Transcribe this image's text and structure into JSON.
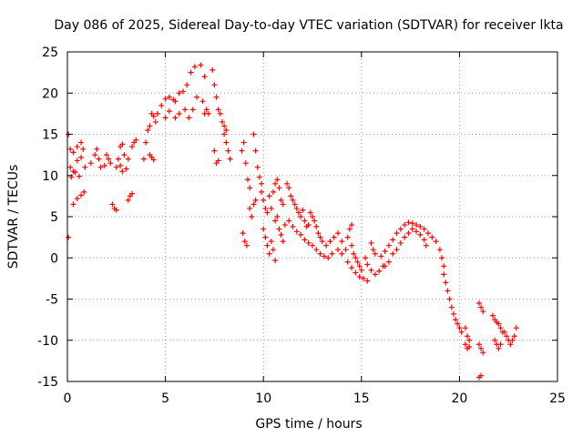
{
  "chart_data": {
    "type": "scatter",
    "title": "Day 086 of 2025, Sidereal Day-to-day VTEC variation (SDTVAR) for receiver lkta",
    "xlabel": "GPS time / hours",
    "ylabel": "SDTVAR / TECUs",
    "xlim": [
      0,
      25
    ],
    "ylim": [
      -15,
      25
    ],
    "xticks": [
      0,
      5,
      10,
      15,
      20,
      25
    ],
    "xtick_labels": [
      "0",
      "5",
      "10",
      "15",
      "20",
      "25"
    ],
    "yticks": [
      -15,
      -10,
      -5,
      0,
      5,
      10,
      15,
      20,
      25
    ],
    "ytick_labels": [
      "-15",
      "-10",
      "-5",
      "0",
      "5",
      "10",
      "15",
      "20",
      "25"
    ],
    "grid": true,
    "marker": "+",
    "series": [
      {
        "name": "SDTVAR",
        "color": "#ff0000",
        "points": [
          [
            0.05,
            15.0
          ],
          [
            0.05,
            2.5
          ],
          [
            0.15,
            13.2
          ],
          [
            0.3,
            12.8
          ],
          [
            0.5,
            13.5
          ],
          [
            0.7,
            14.0
          ],
          [
            0.8,
            13.2
          ],
          [
            0.15,
            11.0
          ],
          [
            0.3,
            10.5
          ],
          [
            0.5,
            11.8
          ],
          [
            0.7,
            12.2
          ],
          [
            0.9,
            11.0
          ],
          [
            0.2,
            9.8
          ],
          [
            0.4,
            10.4
          ],
          [
            0.6,
            9.9
          ],
          [
            0.3,
            6.5
          ],
          [
            0.5,
            7.2
          ],
          [
            0.7,
            7.6
          ],
          [
            0.85,
            8.0
          ],
          [
            1.2,
            11.5
          ],
          [
            1.4,
            12.5
          ],
          [
            1.5,
            13.2
          ],
          [
            1.6,
            12.0
          ],
          [
            1.7,
            11.0
          ],
          [
            1.9,
            11.2
          ],
          [
            2.0,
            12.5
          ],
          [
            2.1,
            12.0
          ],
          [
            2.2,
            11.5
          ],
          [
            2.3,
            6.5
          ],
          [
            2.4,
            6.0
          ],
          [
            2.5,
            5.8
          ],
          [
            2.5,
            11.0
          ],
          [
            2.6,
            12.0
          ],
          [
            2.7,
            13.5
          ],
          [
            2.8,
            13.8
          ],
          [
            2.9,
            12.5
          ],
          [
            2.7,
            11.2
          ],
          [
            2.8,
            10.5
          ],
          [
            3.0,
            10.8
          ],
          [
            3.1,
            12.0
          ],
          [
            3.1,
            7.0
          ],
          [
            3.2,
            7.5
          ],
          [
            3.3,
            7.8
          ],
          [
            3.3,
            13.5
          ],
          [
            3.4,
            14.0
          ],
          [
            3.5,
            14.3
          ],
          [
            3.9,
            12.0
          ],
          [
            4.0,
            14.0
          ],
          [
            4.1,
            15.5
          ],
          [
            4.2,
            16.0
          ],
          [
            4.3,
            17.5
          ],
          [
            4.4,
            17.2
          ],
          [
            4.2,
            12.5
          ],
          [
            4.3,
            12.2
          ],
          [
            4.4,
            11.9
          ],
          [
            4.5,
            16.5
          ],
          [
            4.6,
            17.5
          ],
          [
            4.8,
            18.5
          ],
          [
            5.0,
            19.3
          ],
          [
            5.2,
            19.5
          ],
          [
            5.4,
            19.2
          ],
          [
            5.5,
            19.0
          ],
          [
            5.7,
            20.0
          ],
          [
            5.9,
            20.2
          ],
          [
            6.1,
            21.0
          ],
          [
            6.3,
            22.5
          ],
          [
            6.5,
            23.2
          ],
          [
            6.8,
            23.4
          ],
          [
            7.0,
            22.0
          ],
          [
            5.0,
            17.0
          ],
          [
            5.2,
            17.8
          ],
          [
            5.5,
            17.0
          ],
          [
            5.7,
            17.5
          ],
          [
            6.0,
            18.0
          ],
          [
            6.2,
            17.0
          ],
          [
            6.4,
            18.0
          ],
          [
            6.6,
            19.5
          ],
          [
            6.9,
            19.0
          ],
          [
            7.0,
            17.5
          ],
          [
            7.1,
            18.0
          ],
          [
            7.2,
            17.5
          ],
          [
            7.4,
            22.8
          ],
          [
            7.5,
            21.0
          ],
          [
            7.6,
            19.5
          ],
          [
            7.7,
            18.0
          ],
          [
            7.8,
            17.5
          ],
          [
            7.9,
            16.5
          ],
          [
            8.0,
            16.0
          ],
          [
            8.1,
            15.5
          ],
          [
            7.5,
            13.0
          ],
          [
            7.6,
            11.5
          ],
          [
            7.7,
            11.8
          ],
          [
            8.0,
            15.0
          ],
          [
            8.1,
            14.0
          ],
          [
            8.2,
            13.0
          ],
          [
            8.3,
            12.0
          ],
          [
            9.0,
            14.0
          ],
          [
            8.9,
            13.0
          ],
          [
            9.1,
            11.5
          ],
          [
            9.2,
            9.5
          ],
          [
            9.3,
            8.5
          ],
          [
            8.95,
            3.0
          ],
          [
            9.05,
            2.0
          ],
          [
            9.15,
            1.5
          ],
          [
            9.5,
            15.0
          ],
          [
            9.6,
            13.0
          ],
          [
            9.7,
            11.0
          ],
          [
            9.8,
            9.8
          ],
          [
            9.9,
            9.0
          ],
          [
            9.3,
            6.0
          ],
          [
            9.4,
            5.0
          ],
          [
            9.5,
            6.5
          ],
          [
            9.6,
            7.0
          ],
          [
            9.9,
            8.0
          ],
          [
            10.0,
            7.0
          ],
          [
            10.1,
            6.0
          ],
          [
            10.2,
            5.5
          ],
          [
            10.3,
            7.5
          ],
          [
            10.4,
            6.0
          ],
          [
            10.0,
            3.5
          ],
          [
            10.1,
            2.5
          ],
          [
            10.2,
            1.5
          ],
          [
            10.3,
            0.5
          ],
          [
            10.4,
            2.0
          ],
          [
            10.5,
            1.0
          ],
          [
            10.6,
            -0.3
          ],
          [
            10.5,
            8.0
          ],
          [
            10.6,
            9.0
          ],
          [
            10.7,
            9.5
          ],
          [
            10.8,
            8.5
          ],
          [
            10.9,
            7.0
          ],
          [
            11.0,
            6.5
          ],
          [
            10.6,
            4.5
          ],
          [
            10.7,
            5.0
          ],
          [
            10.8,
            3.5
          ],
          [
            10.9,
            2.8
          ],
          [
            11.0,
            2.0
          ],
          [
            11.1,
            4.0
          ],
          [
            11.2,
            9.0
          ],
          [
            11.3,
            8.5
          ],
          [
            11.4,
            7.5
          ],
          [
            11.5,
            7.0
          ],
          [
            11.6,
            6.5
          ],
          [
            11.7,
            6.0
          ],
          [
            11.8,
            5.5
          ],
          [
            11.9,
            5.0
          ],
          [
            12.0,
            5.8
          ],
          [
            12.1,
            4.5
          ],
          [
            12.2,
            3.8
          ],
          [
            12.3,
            4.0
          ],
          [
            11.3,
            4.5
          ],
          [
            11.5,
            3.8
          ],
          [
            11.7,
            3.2
          ],
          [
            11.9,
            2.8
          ],
          [
            12.1,
            2.2
          ],
          [
            12.3,
            1.8
          ],
          [
            12.4,
            5.5
          ],
          [
            12.5,
            5.0
          ],
          [
            12.6,
            4.5
          ],
          [
            12.7,
            3.8
          ],
          [
            12.8,
            3.0
          ],
          [
            12.9,
            2.5
          ],
          [
            12.5,
            1.5
          ],
          [
            12.7,
            1.0
          ],
          [
            12.9,
            0.5
          ],
          [
            13.1,
            0.2
          ],
          [
            13.3,
            0.0
          ],
          [
            13.5,
            0.5
          ],
          [
            13.0,
            2.0
          ],
          [
            13.2,
            1.5
          ],
          [
            13.4,
            2.0
          ],
          [
            13.6,
            2.5
          ],
          [
            13.8,
            3.0
          ],
          [
            14.0,
            2.0
          ],
          [
            13.8,
            1.0
          ],
          [
            14.0,
            0.5
          ],
          [
            14.2,
            1.0
          ],
          [
            14.3,
            2.5
          ],
          [
            14.4,
            3.5
          ],
          [
            14.5,
            4.0
          ],
          [
            14.5,
            1.5
          ],
          [
            14.6,
            0.5
          ],
          [
            14.7,
            0.0
          ],
          [
            14.8,
            -0.5
          ],
          [
            14.9,
            -1.0
          ],
          [
            15.0,
            -1.5
          ],
          [
            14.3,
            -0.5
          ],
          [
            14.5,
            -1.2
          ],
          [
            14.7,
            -1.8
          ],
          [
            14.9,
            -2.3
          ],
          [
            15.1,
            -2.5
          ],
          [
            15.3,
            -2.8
          ],
          [
            15.2,
            0.0
          ],
          [
            15.3,
            -0.8
          ],
          [
            15.5,
            -1.5
          ],
          [
            15.7,
            -2.0
          ],
          [
            15.9,
            -1.6
          ],
          [
            16.1,
            -1.0
          ],
          [
            15.5,
            1.8
          ],
          [
            15.6,
            1.0
          ],
          [
            15.7,
            0.5
          ],
          [
            16.0,
            0.2
          ],
          [
            16.2,
            0.8
          ],
          [
            16.4,
            1.5
          ],
          [
            16.6,
            2.2
          ],
          [
            16.8,
            3.0
          ],
          [
            17.0,
            3.5
          ],
          [
            16.2,
            -1.0
          ],
          [
            16.4,
            -0.5
          ],
          [
            16.6,
            0.5
          ],
          [
            16.8,
            1.0
          ],
          [
            17.0,
            1.8
          ],
          [
            17.2,
            2.5
          ],
          [
            17.2,
            4.0
          ],
          [
            17.4,
            4.3
          ],
          [
            17.6,
            4.2
          ],
          [
            17.8,
            4.0
          ],
          [
            18.0,
            3.8
          ],
          [
            18.2,
            3.5
          ],
          [
            17.4,
            3.0
          ],
          [
            17.6,
            3.5
          ],
          [
            17.8,
            3.2
          ],
          [
            18.0,
            2.8
          ],
          [
            18.2,
            2.2
          ],
          [
            18.3,
            1.5
          ],
          [
            18.4,
            3.0
          ],
          [
            18.6,
            2.5
          ],
          [
            18.8,
            2.0
          ],
          [
            19.0,
            1.0
          ],
          [
            19.1,
            0.0
          ],
          [
            19.2,
            -1.0
          ],
          [
            19.2,
            -2.0
          ],
          [
            19.3,
            -3.0
          ],
          [
            19.4,
            -4.0
          ],
          [
            19.5,
            -5.0
          ],
          [
            19.6,
            -6.0
          ],
          [
            19.7,
            -6.8
          ],
          [
            19.8,
            -7.5
          ],
          [
            19.9,
            -8.0
          ],
          [
            20.0,
            -8.5
          ],
          [
            20.1,
            -9.0
          ],
          [
            20.3,
            -8.5
          ],
          [
            20.4,
            -9.5
          ],
          [
            20.5,
            -10.0
          ],
          [
            20.3,
            -10.5
          ],
          [
            20.4,
            -11.0
          ],
          [
            20.5,
            -10.8
          ],
          [
            21.0,
            -5.5
          ],
          [
            21.1,
            -6.0
          ],
          [
            21.2,
            -6.5
          ],
          [
            21.0,
            -10.5
          ],
          [
            21.1,
            -11.0
          ],
          [
            21.2,
            -11.5
          ],
          [
            21.0,
            -14.5
          ],
          [
            21.1,
            -14.3
          ],
          [
            21.7,
            -7.0
          ],
          [
            21.8,
            -7.5
          ],
          [
            21.9,
            -7.8
          ],
          [
            22.0,
            -8.0
          ],
          [
            22.1,
            -8.5
          ],
          [
            22.2,
            -9.0
          ],
          [
            21.8,
            -10.0
          ],
          [
            21.9,
            -10.5
          ],
          [
            22.0,
            -11.0
          ],
          [
            22.1,
            -10.5
          ],
          [
            22.3,
            -9.0
          ],
          [
            22.4,
            -9.5
          ],
          [
            22.5,
            -10.0
          ],
          [
            22.6,
            -10.5
          ],
          [
            22.7,
            -10.0
          ],
          [
            22.8,
            -9.5
          ],
          [
            22.9,
            -8.5
          ]
        ]
      }
    ]
  }
}
